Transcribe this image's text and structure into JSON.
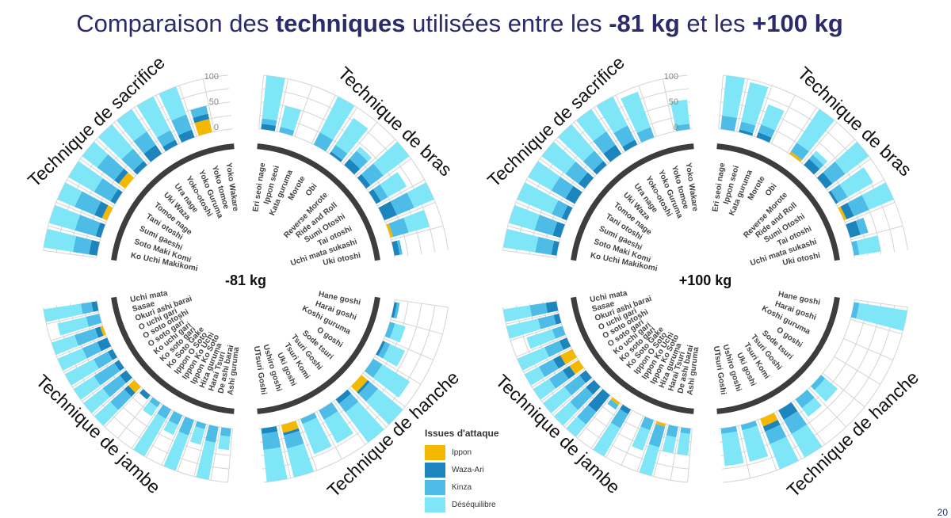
{
  "title": {
    "pre": "Comparaison des ",
    "b1": "techniques",
    "mid1": " utilisées entre les ",
    "b2": "-81 kg",
    "mid2": " et les ",
    "b3": "+100 kg"
  },
  "legend": {
    "title": "Issues d'attaque",
    "items": [
      {
        "label": "Ippon",
        "color": "#f5b800"
      },
      {
        "label": "Waza-Ari",
        "color": "#1c85bd"
      },
      {
        "label": "Kinza",
        "color": "#4dbde8"
      },
      {
        "label": "Déséquilibre",
        "color": "#7fe6f7"
      }
    ]
  },
  "colors": {
    "Ippon": "#f5b800",
    "WazaAri": "#1c85bd",
    "Kinza": "#4dbde8",
    "Desequilibre": "#7fe6f7",
    "grid": "#d4d4d4",
    "arc": "#3d3d3d",
    "label": "#444444",
    "title": "#2b2a6b"
  },
  "page_number": "20",
  "chart_data": [
    {
      "type": "radial-stacked-bar",
      "center_label": "-81 kg",
      "scale": {
        "ticks": [
          "100",
          "50",
          "0"
        ]
      },
      "groups": [
        {
          "name": "Technique de bras",
          "techniques": [
            {
              "name": "Eri seoi nage",
              "values": [
                0,
                10,
                10,
                80
              ]
            },
            {
              "name": "Ippon seoi",
              "values": [
                0,
                0,
                10,
                40
              ]
            },
            {
              "name": "Kata guruma",
              "values": [
                0,
                0,
                0,
                0
              ]
            },
            {
              "name": "Morote",
              "values": [
                0,
                0,
                25,
                75
              ]
            },
            {
              "name": "Obi",
              "values": [
                0,
                5,
                15,
                60
              ]
            },
            {
              "name": "Reverse Morote",
              "values": [
                0,
                15,
                20,
                10
              ]
            },
            {
              "name": "Ride and Roll",
              "values": [
                0,
                10,
                30,
                60
              ]
            },
            {
              "name": "Sumi Otoshi",
              "values": [
                0,
                10,
                15,
                40
              ]
            },
            {
              "name": "Tai otoshi",
              "values": [
                0,
                25,
                35,
                40
              ]
            },
            {
              "name": "Uchi mata sukashi",
              "values": [
                5,
                0,
                30,
                40
              ]
            },
            {
              "name": "Uki otoshi",
              "values": [
                0,
                10,
                5,
                0
              ]
            }
          ]
        },
        {
          "name": "Technique de hanche",
          "techniques": [
            {
              "name": "Hane goshi",
              "values": [
                0,
                5,
                5,
                0
              ]
            },
            {
              "name": "Harai goshi",
              "values": [
                0,
                0,
                10,
                20
              ]
            },
            {
              "name": "Koshi guruma",
              "values": [
                0,
                5,
                10,
                30
              ]
            },
            {
              "name": "O goshi",
              "values": [
                0,
                0,
                20,
                60
              ]
            },
            {
              "name": "Sode tsuri",
              "values": [
                15,
                5,
                20,
                60
              ]
            },
            {
              "name": "Tsuri Goshi",
              "values": [
                0,
                10,
                20,
                70
              ]
            },
            {
              "name": "Tsuri Komi",
              "values": [
                0,
                0,
                20,
                50
              ]
            },
            {
              "name": "Uki goshi",
              "values": [
                0,
                0,
                10,
                60
              ]
            },
            {
              "name": "Ushiro goshi",
              "values": [
                15,
                5,
                25,
                55
              ]
            },
            {
              "name": "UTsuri Goshi",
              "values": [
                0,
                10,
                30,
                60
              ]
            }
          ]
        },
        {
          "name": "Technique de jambe",
          "techniques": [
            {
              "name": "Ashi guruma",
              "values": [
                0,
                0,
                15,
                25
              ]
            },
            {
              "name": "De ashi barai",
              "values": [
                0,
                0,
                30,
                70
              ]
            },
            {
              "name": "Harai Tsuri",
              "values": [
                0,
                0,
                10,
                30
              ]
            },
            {
              "name": "Hiza guruma",
              "values": [
                0,
                0,
                30,
                70
              ]
            },
            {
              "name": "Ippon Ko Soto",
              "values": [
                0,
                0,
                20,
                20
              ]
            },
            {
              "name": "Ippon Ko Uchi",
              "values": [
                0,
                0,
                20,
                80
              ]
            },
            {
              "name": "Ippon O Soto",
              "values": [
                0,
                0,
                10,
                20
              ]
            },
            {
              "name": "Ko Soto Gake",
              "values": [
                0,
                10,
                0,
                0
              ]
            },
            {
              "name": "Ko soto gari",
              "values": [
                15,
                10,
                35,
                40
              ]
            },
            {
              "name": "Ko uchi gari",
              "values": [
                0,
                15,
                40,
                45
              ]
            },
            {
              "name": "O soto gari",
              "values": [
                0,
                10,
                45,
                45
              ]
            },
            {
              "name": "O soto otoshi",
              "values": [
                0,
                10,
                30,
                60
              ]
            },
            {
              "name": "O uchi gari",
              "values": [
                0,
                20,
                30,
                50
              ]
            },
            {
              "name": "Okuri ashi barai",
              "values": [
                5,
                10,
                40,
                45
              ]
            },
            {
              "name": "Sasae",
              "values": [
                0,
                0,
                25,
                55
              ]
            },
            {
              "name": "Uchi mata",
              "values": [
                0,
                10,
                20,
                70
              ]
            }
          ]
        },
        {
          "name": "Technique de sacrifice",
          "techniques": [
            {
              "name": "Ko Uchi Makikomi",
              "values": [
                0,
                15,
                30,
                55
              ]
            },
            {
              "name": "Soto Maki Komi",
              "values": [
                0,
                10,
                40,
                50
              ]
            },
            {
              "name": "Sumi gaeshi",
              "values": [
                10,
                15,
                40,
                35
              ]
            },
            {
              "name": "Tani otoshi",
              "values": [
                0,
                10,
                35,
                55
              ]
            },
            {
              "name": "Tomoe nage",
              "values": [
                15,
                10,
                40,
                35
              ]
            },
            {
              "name": "Uki Waza",
              "values": [
                0,
                10,
                30,
                60
              ]
            },
            {
              "name": "Ura nage",
              "values": [
                0,
                20,
                30,
                50
              ]
            },
            {
              "name": "Yoko-otoshi",
              "values": [
                0,
                10,
                20,
                70
              ]
            },
            {
              "name": "Yoko Guruma",
              "values": [
                0,
                15,
                30,
                55
              ]
            },
            {
              "name": "Yoko tomoe",
              "values": [
                25,
                10,
                15,
                0
              ]
            },
            {
              "name": "Yoko Wakare",
              "values": [
                0,
                0,
                0,
                0
              ]
            }
          ]
        }
      ]
    },
    {
      "type": "radial-stacked-bar",
      "center_label": "+100 kg",
      "scale": {
        "ticks": [
          "100",
          "50",
          "0"
        ]
      },
      "groups": [
        {
          "name": "Technique de bras",
          "techniques": [
            {
              "name": "Eri seoi nage",
              "values": [
                0,
                0,
                25,
                75
              ]
            },
            {
              "name": "Ippon seoi",
              "values": [
                0,
                5,
                15,
                75
              ]
            },
            {
              "name": "Kata guruma",
              "values": [
                0,
                10,
                15,
                40
              ]
            },
            {
              "name": "Morote",
              "values": [
                0,
                0,
                0,
                0
              ]
            },
            {
              "name": "Obi",
              "values": [
                5,
                0,
                20,
                75
              ]
            },
            {
              "name": "Reverse Morote",
              "values": [
                0,
                15,
                10,
                10
              ]
            },
            {
              "name": "Ride and Roll",
              "values": [
                0,
                15,
                30,
                55
              ]
            },
            {
              "name": "Sumi Otoshi",
              "values": [
                0,
                5,
                20,
                55
              ]
            },
            {
              "name": "Tai otoshi",
              "values": [
                5,
                15,
                30,
                50
              ]
            },
            {
              "name": "Uchi mata sukashi",
              "values": [
                0,
                20,
                15,
                0
              ]
            },
            {
              "name": "Uki otoshi",
              "values": [
                0,
                0,
                10,
                40
              ]
            }
          ]
        },
        {
          "name": "Technique de hanche",
          "techniques": [
            {
              "name": "Hane goshi",
              "values": [
                0,
                0,
                10,
                90
              ]
            },
            {
              "name": "Harai goshi",
              "values": [
                0,
                0,
                0,
                0
              ]
            },
            {
              "name": "Koshi guruma",
              "values": [
                0,
                0,
                0,
                0
              ]
            },
            {
              "name": "O goshi",
              "values": [
                0,
                0,
                0,
                0
              ]
            },
            {
              "name": "Sode tsuri",
              "values": [
                0,
                0,
                10,
                30
              ]
            },
            {
              "name": "Tsuri Goshi",
              "values": [
                0,
                0,
                20,
                20
              ]
            },
            {
              "name": "Tsuri Komi",
              "values": [
                0,
                20,
                30,
                50
              ]
            },
            {
              "name": "Uki goshi",
              "values": [
                15,
                10,
                25,
                50
              ]
            },
            {
              "name": "Ushiro goshi",
              "values": [
                0,
                0,
                10,
                60
              ]
            },
            {
              "name": "UTsuri Goshi",
              "values": [
                0,
                0,
                10,
                60
              ]
            }
          ]
        },
        {
          "name": "Technique de jambe",
          "techniques": [
            {
              "name": "Ashi guruma",
              "values": [
                0,
                0,
                10,
                40
              ]
            },
            {
              "name": "De ashi barai",
              "values": [
                0,
                0,
                20,
                30
              ]
            },
            {
              "name": "Harai Tsuri",
              "values": [
                5,
                0,
                40,
                55
              ]
            },
            {
              "name": "Hiza guruma",
              "values": [
                0,
                0,
                20,
                40
              ]
            },
            {
              "name": "Ippon Ko Soto",
              "values": [
                0,
                0,
                0,
                0
              ]
            },
            {
              "name": "Ippon Ko Uchi",
              "values": [
                0,
                10,
                30,
                60
              ]
            },
            {
              "name": "Ippon O Soto",
              "values": [
                5,
                0,
                10,
                0
              ]
            },
            {
              "name": "Ko Soto Gake",
              "values": [
                0,
                40,
                30,
                30
              ]
            },
            {
              "name": "Ko soto gari",
              "values": [
                0,
                20,
                40,
                40
              ]
            },
            {
              "name": "Ko uchi gari",
              "values": [
                0,
                15,
                35,
                50
              ]
            },
            {
              "name": "O soto gari",
              "values": [
                20,
                15,
                30,
                35
              ]
            },
            {
              "name": "O soto otoshi",
              "values": [
                25,
                15,
                30,
                30
              ]
            },
            {
              "name": "O uchi gari",
              "values": [
                0,
                15,
                30,
                55
              ]
            },
            {
              "name": "Okuri ashi barai",
              "values": [
                0,
                0,
                20,
                50
              ]
            },
            {
              "name": "Sasae",
              "values": [
                0,
                10,
                30,
                60
              ]
            },
            {
              "name": "Uchi mata",
              "values": [
                0,
                20,
                30,
                50
              ]
            }
          ]
        },
        {
          "name": "Technique de sacrifice",
          "techniques": [
            {
              "name": "Ko Uchi Makikomi",
              "values": [
                0,
                10,
                30,
                60
              ]
            },
            {
              "name": "Soto Maki Komi",
              "values": [
                0,
                15,
                35,
                50
              ]
            },
            {
              "name": "Sumi gaeshi",
              "values": [
                0,
                10,
                20,
                70
              ]
            },
            {
              "name": "Tani otoshi",
              "values": [
                0,
                20,
                30,
                50
              ]
            },
            {
              "name": "Tomoe nage",
              "values": [
                0,
                15,
                30,
                55
              ]
            },
            {
              "name": "Uki Waza",
              "values": [
                0,
                10,
                25,
                65
              ]
            },
            {
              "name": "Ura nage",
              "values": [
                0,
                20,
                30,
                50
              ]
            },
            {
              "name": "Yoko-otoshi",
              "values": [
                0,
                10,
                30,
                60
              ]
            },
            {
              "name": "Yoko Guruma",
              "values": [
                0,
                0,
                20,
                70
              ]
            },
            {
              "name": "Yoko tomoe",
              "values": [
                0,
                0,
                0,
                0
              ]
            },
            {
              "name": "Yoko Wakare",
              "values": [
                0,
                0,
                10,
                45
              ]
            }
          ]
        }
      ]
    }
  ]
}
